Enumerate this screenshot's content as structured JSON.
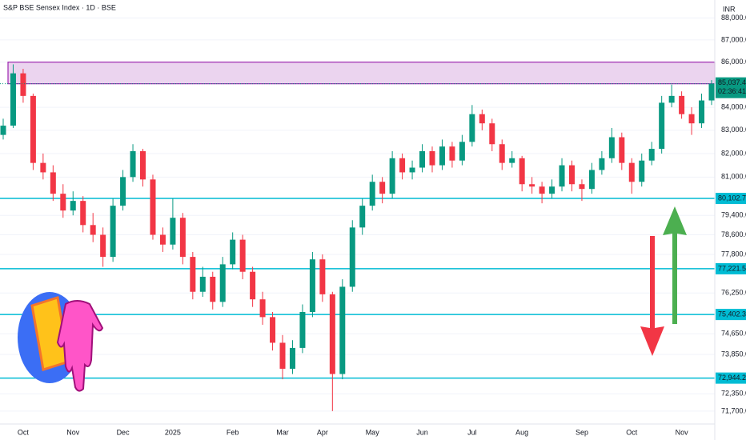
{
  "chart_data": {
    "type": "candlestick",
    "title": "S&P BSE Sensex Index · 1D · BSE",
    "currency": "INR",
    "log_scale": true,
    "up_color": "#089981",
    "down_color": "#f23645",
    "categories": [
      null,
      null,
      "Oct",
      null,
      null,
      null,
      null,
      "Nov",
      null,
      null,
      null,
      null,
      "Dec",
      null,
      null,
      null,
      null,
      "2025",
      null,
      null,
      null,
      null,
      null,
      "Feb",
      null,
      null,
      null,
      null,
      "Mar",
      null,
      null,
      null,
      "Apr",
      null,
      null,
      null,
      null,
      "May",
      null,
      null,
      null,
      null,
      "Jun",
      null,
      null,
      null,
      null,
      "Jul",
      null,
      null,
      null,
      null,
      "Aug",
      null,
      null,
      null,
      null,
      null,
      "Sep",
      null,
      null,
      null,
      null,
      "Oct",
      null,
      null,
      null,
      null,
      "Nov",
      null,
      null,
      null
    ],
    "open": [
      82800,
      83200,
      85500,
      84500,
      81600,
      81200,
      80300,
      79600,
      80000,
      79000,
      78600,
      77700,
      79800,
      81000,
      82100,
      80900,
      78600,
      78200,
      79300,
      77700,
      76300,
      76900,
      75900,
      77400,
      78400,
      77100,
      76000,
      75300,
      74300,
      73300,
      74100,
      75500,
      77600,
      76200,
      73100,
      76500,
      78900,
      79800,
      80800,
      80300,
      81800,
      81200,
      81400,
      82100,
      81500,
      82300,
      81700,
      82500,
      83700,
      83300,
      82400,
      81600,
      81800,
      80700,
      80600,
      80300,
      80600,
      81500,
      80700,
      80500,
      81300,
      81800,
      82700,
      81600,
      80800,
      81700,
      82200,
      84200,
      84500,
      83700,
      83300,
      84300
    ],
    "high": [
      83500,
      85900,
      85700,
      84600,
      82000,
      81500,
      80700,
      80400,
      80200,
      79500,
      78900,
      80100,
      81300,
      82400,
      82200,
      81100,
      78900,
      80100,
      79500,
      77900,
      77300,
      77100,
      77700,
      78700,
      78600,
      77300,
      76300,
      75500,
      74600,
      74400,
      75800,
      77900,
      77800,
      76300,
      76800,
      79200,
      80100,
      81100,
      81000,
      82100,
      82000,
      81700,
      82400,
      82300,
      82600,
      82500,
      82800,
      84100,
      83900,
      83500,
      82600,
      82100,
      81900,
      81000,
      80800,
      80900,
      81800,
      81700,
      80900,
      81600,
      82100,
      83100,
      82900,
      81800,
      82000,
      82500,
      84500,
      85000,
      84700,
      84000,
      84600,
      85200
    ],
    "low": [
      82600,
      83100,
      84200,
      81300,
      80900,
      80000,
      79300,
      79400,
      78700,
      78300,
      77300,
      77500,
      79600,
      80800,
      80600,
      78400,
      77900,
      78000,
      77400,
      76000,
      76100,
      75600,
      75700,
      77200,
      76800,
      75700,
      75000,
      74000,
      72900,
      73100,
      73900,
      75300,
      75900,
      71700,
      72900,
      76300,
      78600,
      79600,
      79900,
      80100,
      80900,
      80900,
      81200,
      81200,
      81300,
      81400,
      81500,
      82300,
      83000,
      82100,
      81300,
      81400,
      80400,
      80300,
      79900,
      80100,
      80400,
      80400,
      80000,
      80300,
      81100,
      81600,
      81300,
      80300,
      80600,
      81500,
      82000,
      84000,
      83500,
      82800,
      83100,
      84100
    ],
    "close": [
      83200,
      85500,
      84500,
      81600,
      81200,
      80300,
      79600,
      80000,
      79000,
      78600,
      77700,
      79800,
      81000,
      82100,
      80900,
      78600,
      78200,
      79300,
      77700,
      76300,
      76900,
      75900,
      77400,
      78400,
      77100,
      76000,
      75300,
      74300,
      73300,
      74100,
      75500,
      77600,
      76200,
      73100,
      76500,
      78900,
      79800,
      80800,
      80300,
      81800,
      81200,
      81400,
      82100,
      81500,
      82300,
      81700,
      82500,
      83700,
      83300,
      82400,
      81600,
      81800,
      80700,
      80600,
      80300,
      80600,
      81500,
      80700,
      80500,
      81300,
      81800,
      82700,
      81600,
      80800,
      81700,
      82200,
      84200,
      84500,
      83700,
      83300,
      84300,
      85037.42
    ],
    "ylim": [
      71220,
      88830
    ],
    "yticks": [
      {
        "value": 88000,
        "label": "88,000.00"
      },
      {
        "value": 87000,
        "label": "87,000.00"
      },
      {
        "value": 86000,
        "label": "86,000.00"
      },
      {
        "value": 84000,
        "label": "84,000.00"
      },
      {
        "value": 83000,
        "label": "83,000.00"
      },
      {
        "value": 82000,
        "label": "82,000.00"
      },
      {
        "value": 81000,
        "label": "81,000.00"
      },
      {
        "value": 79400,
        "label": "79,400.00"
      },
      {
        "value": 78600,
        "label": "78,600.00"
      },
      {
        "value": 77800,
        "label": "77,800.00"
      },
      {
        "value": 76250,
        "label": "76,250.00"
      },
      {
        "value": 74650,
        "label": "74,650.00"
      },
      {
        "value": 73850,
        "label": "73,850.00"
      },
      {
        "value": 72350,
        "label": "72,350.00"
      },
      {
        "value": 71700,
        "label": "71,700.00"
      }
    ],
    "zone": [
      85037.42,
      86000
    ],
    "zone_color": "#9c27b0",
    "levels": [
      {
        "value": 80102.79,
        "label": "80,102.79"
      },
      {
        "value": 77221.52,
        "label": "77,221.52"
      },
      {
        "value": 75402.34,
        "label": "75,402.34"
      },
      {
        "value": 72944.22,
        "label": "72,944.22"
      }
    ],
    "level_color": "#00bcd4",
    "last_price": {
      "value": 85037.42,
      "label": "85,037.42"
    },
    "countdown": "02:36:41"
  }
}
